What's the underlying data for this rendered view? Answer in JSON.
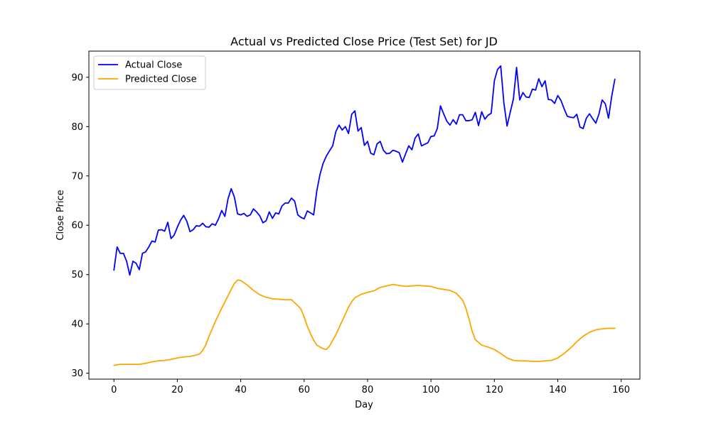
{
  "chart_data": {
    "type": "line",
    "title": "Actual vs Predicted Close Price (Test Set) for JD",
    "xlabel": "Day",
    "ylabel": "Close Price",
    "xlim": [
      -7.9,
      165.9
    ],
    "ylim": [
      28.8,
      95.3
    ],
    "xticks": [
      0,
      20,
      40,
      60,
      80,
      100,
      120,
      140,
      160
    ],
    "yticks": [
      30,
      40,
      50,
      60,
      70,
      80,
      90
    ],
    "grid": false,
    "legend_position": "upper-left",
    "series": [
      {
        "name": "Actual Close",
        "color": "#0000ff",
        "x": [
          0,
          1,
          2,
          3,
          4,
          5,
          6,
          7,
          8,
          9,
          10,
          11,
          12,
          13,
          14,
          15,
          16,
          17,
          18,
          19,
          20,
          21,
          22,
          23,
          24,
          25,
          26,
          27,
          28,
          29,
          30,
          31,
          32,
          33,
          34,
          35,
          36,
          37,
          38,
          39,
          40,
          41,
          42,
          43,
          44,
          45,
          46,
          47,
          48,
          49,
          50,
          51,
          52,
          53,
          54,
          55,
          56,
          57,
          58,
          59,
          60,
          61,
          62,
          63,
          64,
          65,
          66,
          67,
          68,
          69,
          70,
          71,
          72,
          73,
          74,
          75,
          76,
          77,
          78,
          79,
          80,
          81,
          82,
          83,
          84,
          85,
          86,
          87,
          88,
          89,
          90,
          91,
          92,
          93,
          94,
          95,
          96,
          97,
          98,
          99,
          100,
          101,
          102,
          103,
          104,
          105,
          106,
          107,
          108,
          109,
          110,
          111,
          112,
          113,
          114,
          115,
          116,
          117,
          118,
          119,
          120,
          121,
          122,
          123,
          124,
          125,
          126,
          127,
          128,
          129,
          130,
          131,
          132,
          133,
          134,
          135,
          136,
          137,
          138,
          139,
          140,
          141,
          142,
          143,
          144,
          145,
          146,
          147,
          148,
          149,
          150,
          151,
          152,
          153,
          154,
          155,
          156,
          157,
          158
        ],
        "y": [
          50.9,
          55.6,
          54.3,
          54.3,
          52.7,
          49.9,
          52.7,
          52.3,
          51.0,
          54.3,
          54.6,
          55.6,
          56.8,
          56.6,
          59.0,
          59.1,
          58.8,
          60.6,
          57.3,
          58.0,
          59.6,
          61.0,
          62.0,
          60.8,
          58.7,
          59.1,
          59.9,
          59.8,
          60.4,
          59.7,
          59.6,
          60.3,
          60.0,
          61.3,
          63.0,
          61.8,
          65.4,
          67.4,
          65.7,
          62.3,
          62.1,
          62.4,
          61.8,
          62.1,
          63.3,
          62.7,
          61.9,
          60.5,
          60.9,
          62.7,
          61.4,
          62.5,
          62.3,
          63.9,
          64.5,
          64.5,
          65.5,
          64.9,
          62.1,
          61.6,
          61.3,
          62.9,
          62.5,
          62.1,
          67.0,
          70.3,
          72.6,
          74.0,
          75.1,
          76.1,
          79.0,
          80.3,
          79.3,
          80.0,
          78.6,
          82.5,
          83.2,
          79.1,
          79.8,
          76.2,
          77.0,
          74.6,
          74.3,
          76.5,
          77.0,
          75.2,
          74.5,
          74.6,
          75.2,
          75.0,
          74.7,
          72.8,
          74.5,
          76.1,
          75.3,
          77.7,
          78.5,
          76.1,
          76.4,
          76.7,
          78.0,
          78.1,
          79.6,
          84.2,
          82.6,
          81.1,
          80.3,
          81.4,
          80.5,
          82.4,
          82.4,
          81.2,
          81.2,
          81.4,
          82.9,
          80.2,
          83.0,
          81.5,
          82.3,
          82.7,
          89.3,
          91.6,
          92.3,
          84.8,
          80.1,
          82.9,
          85.6,
          92.0,
          85.4,
          86.9,
          86.0,
          85.9,
          87.6,
          87.4,
          89.7,
          88.1,
          89.3,
          85.5,
          85.4,
          84.7,
          86.3,
          85.3,
          83.6,
          82.1,
          81.9,
          81.8,
          82.5,
          79.9,
          79.6,
          81.7,
          82.6,
          81.6,
          80.7,
          82.6,
          85.4,
          84.6,
          81.7,
          86.1,
          89.6
        ]
      },
      {
        "name": "Predicted Close",
        "color": "#ffa500",
        "x": [
          0,
          2,
          4,
          6,
          8,
          10,
          12,
          14,
          16,
          18,
          20,
          22,
          24,
          26,
          27,
          28,
          29,
          30,
          32,
          34,
          36,
          37,
          38,
          39,
          40,
          42,
          44,
          46,
          48,
          50,
          52,
          54,
          56,
          58,
          59,
          60,
          61,
          62,
          63,
          64,
          65,
          66,
          67,
          68,
          70,
          72,
          74,
          75,
          76,
          78,
          80,
          82,
          84,
          86,
          88,
          90,
          92,
          94,
          96,
          98,
          100,
          102,
          104,
          106,
          108,
          110,
          111,
          112,
          113,
          114,
          116,
          118,
          120,
          122,
          124,
          126,
          128,
          130,
          132,
          134,
          136,
          138,
          140,
          142,
          144,
          146,
          148,
          150,
          152,
          154,
          156,
          158
        ],
        "y": [
          31.6,
          31.8,
          31.8,
          31.8,
          31.8,
          32.0,
          32.3,
          32.5,
          32.6,
          32.8,
          33.1,
          33.3,
          33.4,
          33.7,
          33.9,
          34.6,
          35.8,
          37.5,
          40.5,
          43.2,
          45.7,
          47.0,
          48.2,
          48.9,
          48.8,
          47.9,
          46.8,
          45.9,
          45.4,
          45.1,
          45.0,
          44.9,
          44.9,
          43.7,
          43.0,
          41.4,
          39.5,
          38.0,
          36.7,
          35.7,
          35.3,
          35.0,
          34.8,
          35.5,
          37.8,
          40.6,
          43.4,
          44.5,
          45.3,
          46.0,
          46.4,
          46.7,
          47.4,
          47.7,
          48.0,
          47.8,
          47.6,
          47.7,
          47.8,
          47.7,
          47.6,
          47.2,
          47.0,
          46.8,
          46.2,
          44.8,
          43.2,
          41.0,
          38.5,
          36.8,
          35.7,
          35.3,
          34.8,
          34.0,
          33.1,
          32.6,
          32.5,
          32.5,
          32.4,
          32.4,
          32.5,
          32.6,
          33.1,
          34.0,
          35.1,
          36.4,
          37.5,
          38.3,
          38.8,
          39.0,
          39.1,
          39.1
        ]
      }
    ]
  }
}
